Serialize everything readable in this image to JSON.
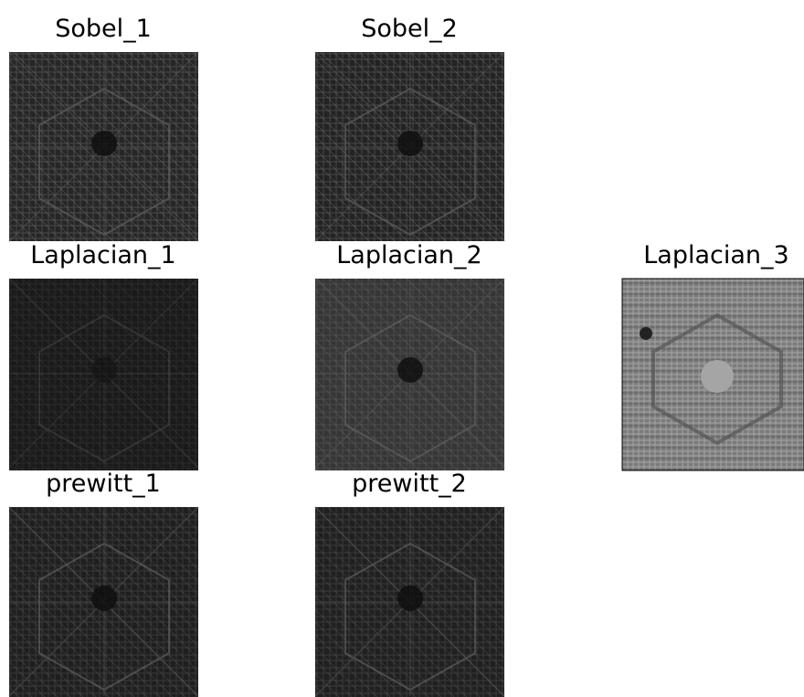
{
  "panels": [
    {
      "title": "Sobel_1"
    },
    {
      "title": "Sobel_2"
    },
    {
      "title": "Laplacian_1"
    },
    {
      "title": "Laplacian_2"
    },
    {
      "title": "Laplacian_3"
    },
    {
      "title": "prewitt_1"
    },
    {
      "title": "prewitt_2"
    }
  ]
}
